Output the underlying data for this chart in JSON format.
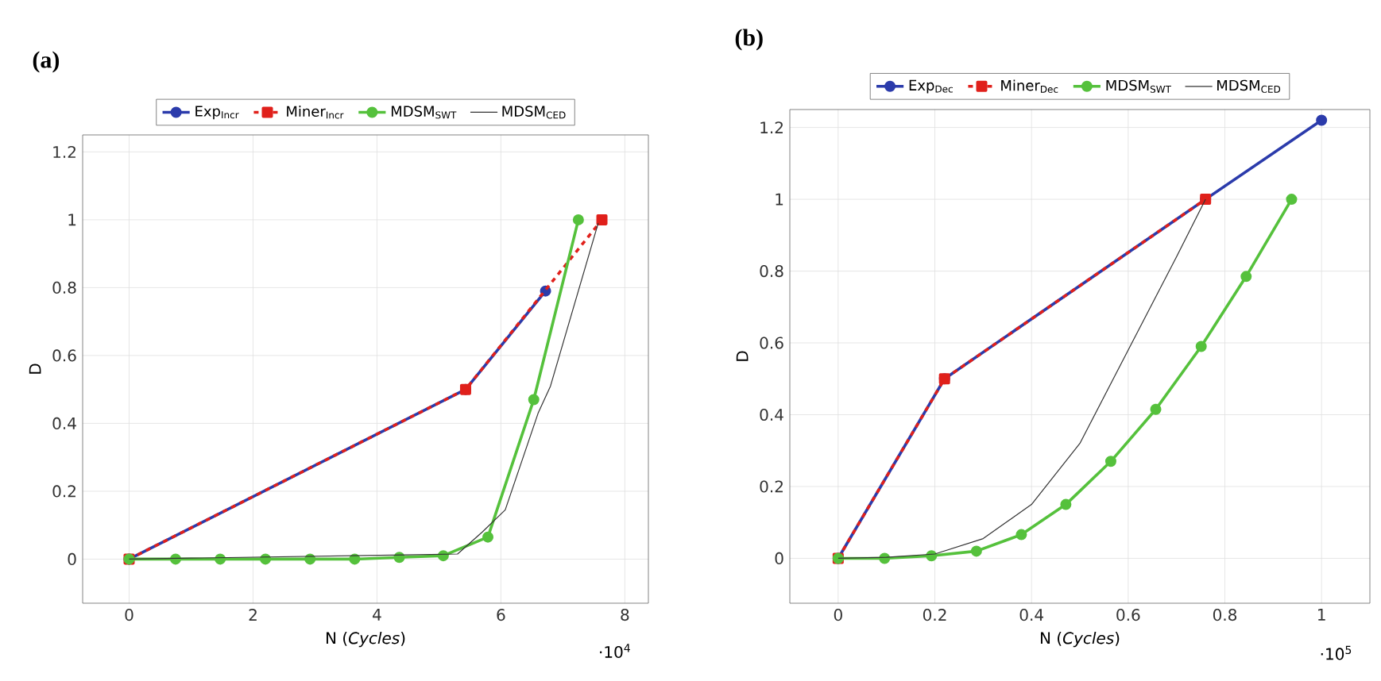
{
  "chart_data": [
    {
      "type": "line",
      "title": "(a)",
      "xlabel": "N (*Cycles*)",
      "ylabel": "D",
      "annotations": [
        "·10$^{4}$"
      ],
      "xlim": [
        -0.75,
        8.38
      ],
      "ylim": [
        -0.13,
        1.25
      ],
      "xticks": [
        0,
        2,
        4,
        6,
        8
      ],
      "yticks": [
        0,
        0.2,
        0.4,
        0.6,
        0.8,
        1,
        1.2
      ],
      "grid": true,
      "legend": "top",
      "series": [
        {
          "name": "Exp$_{Incr}$",
          "color": "#2b3bab",
          "marker": "circle",
          "line_style": "solid",
          "x": [
            0,
            5.43,
            6.72
          ],
          "values": [
            0,
            0.5,
            0.79
          ]
        },
        {
          "name": "Miner$_{Incr}$",
          "color": "#e0201b",
          "marker": "square",
          "line_style": "dashed",
          "x": [
            0,
            5.43,
            7.63
          ],
          "values": [
            0,
            0.5,
            1.0
          ]
        },
        {
          "name": "MDSM$_{SWT}$",
          "color": "#55c13c",
          "marker": "circle",
          "line_style": "solid",
          "x": [
            0,
            0.75,
            1.47,
            2.2,
            2.92,
            3.64,
            4.36,
            5.07,
            5.79,
            6.53,
            7.25
          ],
          "values": [
            0,
            0,
            0,
            0,
            0,
            0,
            0.005,
            0.01,
            0.065,
            0.47,
            1.0
          ]
        },
        {
          "name": "MDSM$_{CED}$",
          "color": "#333333",
          "marker": "none",
          "line_style": "solid",
          "x": [
            0,
            5.3,
            5.7,
            6.07,
            6.6,
            6.8,
            7.57
          ],
          "values": [
            0,
            0.015,
            0.08,
            0.145,
            0.43,
            0.51,
            0.99
          ]
        }
      ]
    },
    {
      "type": "line",
      "title": "(b)",
      "xlabel": "N (*Cycles*)",
      "ylabel": "D",
      "annotations": [
        "·10$^{5}$"
      ],
      "xlim": [
        -0.1,
        1.1
      ],
      "ylim": [
        -0.125,
        1.25
      ],
      "xticks": [
        0,
        0.2,
        0.4,
        0.6,
        0.8,
        1
      ],
      "yticks": [
        0,
        0.2,
        0.4,
        0.6,
        0.8,
        1,
        1.2
      ],
      "grid": true,
      "legend": "top",
      "series": [
        {
          "name": "Exp$_{Dec}$",
          "color": "#2b3bab",
          "marker": "circle",
          "line_style": "solid",
          "x": [
            0,
            0.22,
            0.76,
            1.0
          ],
          "values": [
            0,
            0.5,
            1.0,
            1.22
          ]
        },
        {
          "name": "Miner$_{Dec}$",
          "color": "#e0201b",
          "marker": "square",
          "line_style": "dashed",
          "x": [
            0,
            0.22,
            0.76
          ],
          "values": [
            0,
            0.5,
            1.0
          ]
        },
        {
          "name": "MDSM$_{SWT}$",
          "color": "#55c13c",
          "marker": "circle",
          "line_style": "solid",
          "x": [
            0,
            0.096,
            0.193,
            0.286,
            0.379,
            0.471,
            0.564,
            0.657,
            0.751,
            0.844,
            0.938
          ],
          "values": [
            0,
            0,
            0.007,
            0.02,
            0.066,
            0.15,
            0.27,
            0.415,
            0.59,
            0.785,
            1.0
          ]
        },
        {
          "name": "MDSM$_{CED}$",
          "color": "#333333",
          "marker": "none",
          "line_style": "solid",
          "x": [
            0,
            0.1,
            0.2,
            0.3,
            0.4,
            0.5,
            0.6,
            0.7,
            0.76
          ],
          "values": [
            0,
            0.003,
            0.012,
            0.055,
            0.15,
            0.32,
            0.58,
            0.84,
            1.0
          ]
        }
      ]
    }
  ]
}
